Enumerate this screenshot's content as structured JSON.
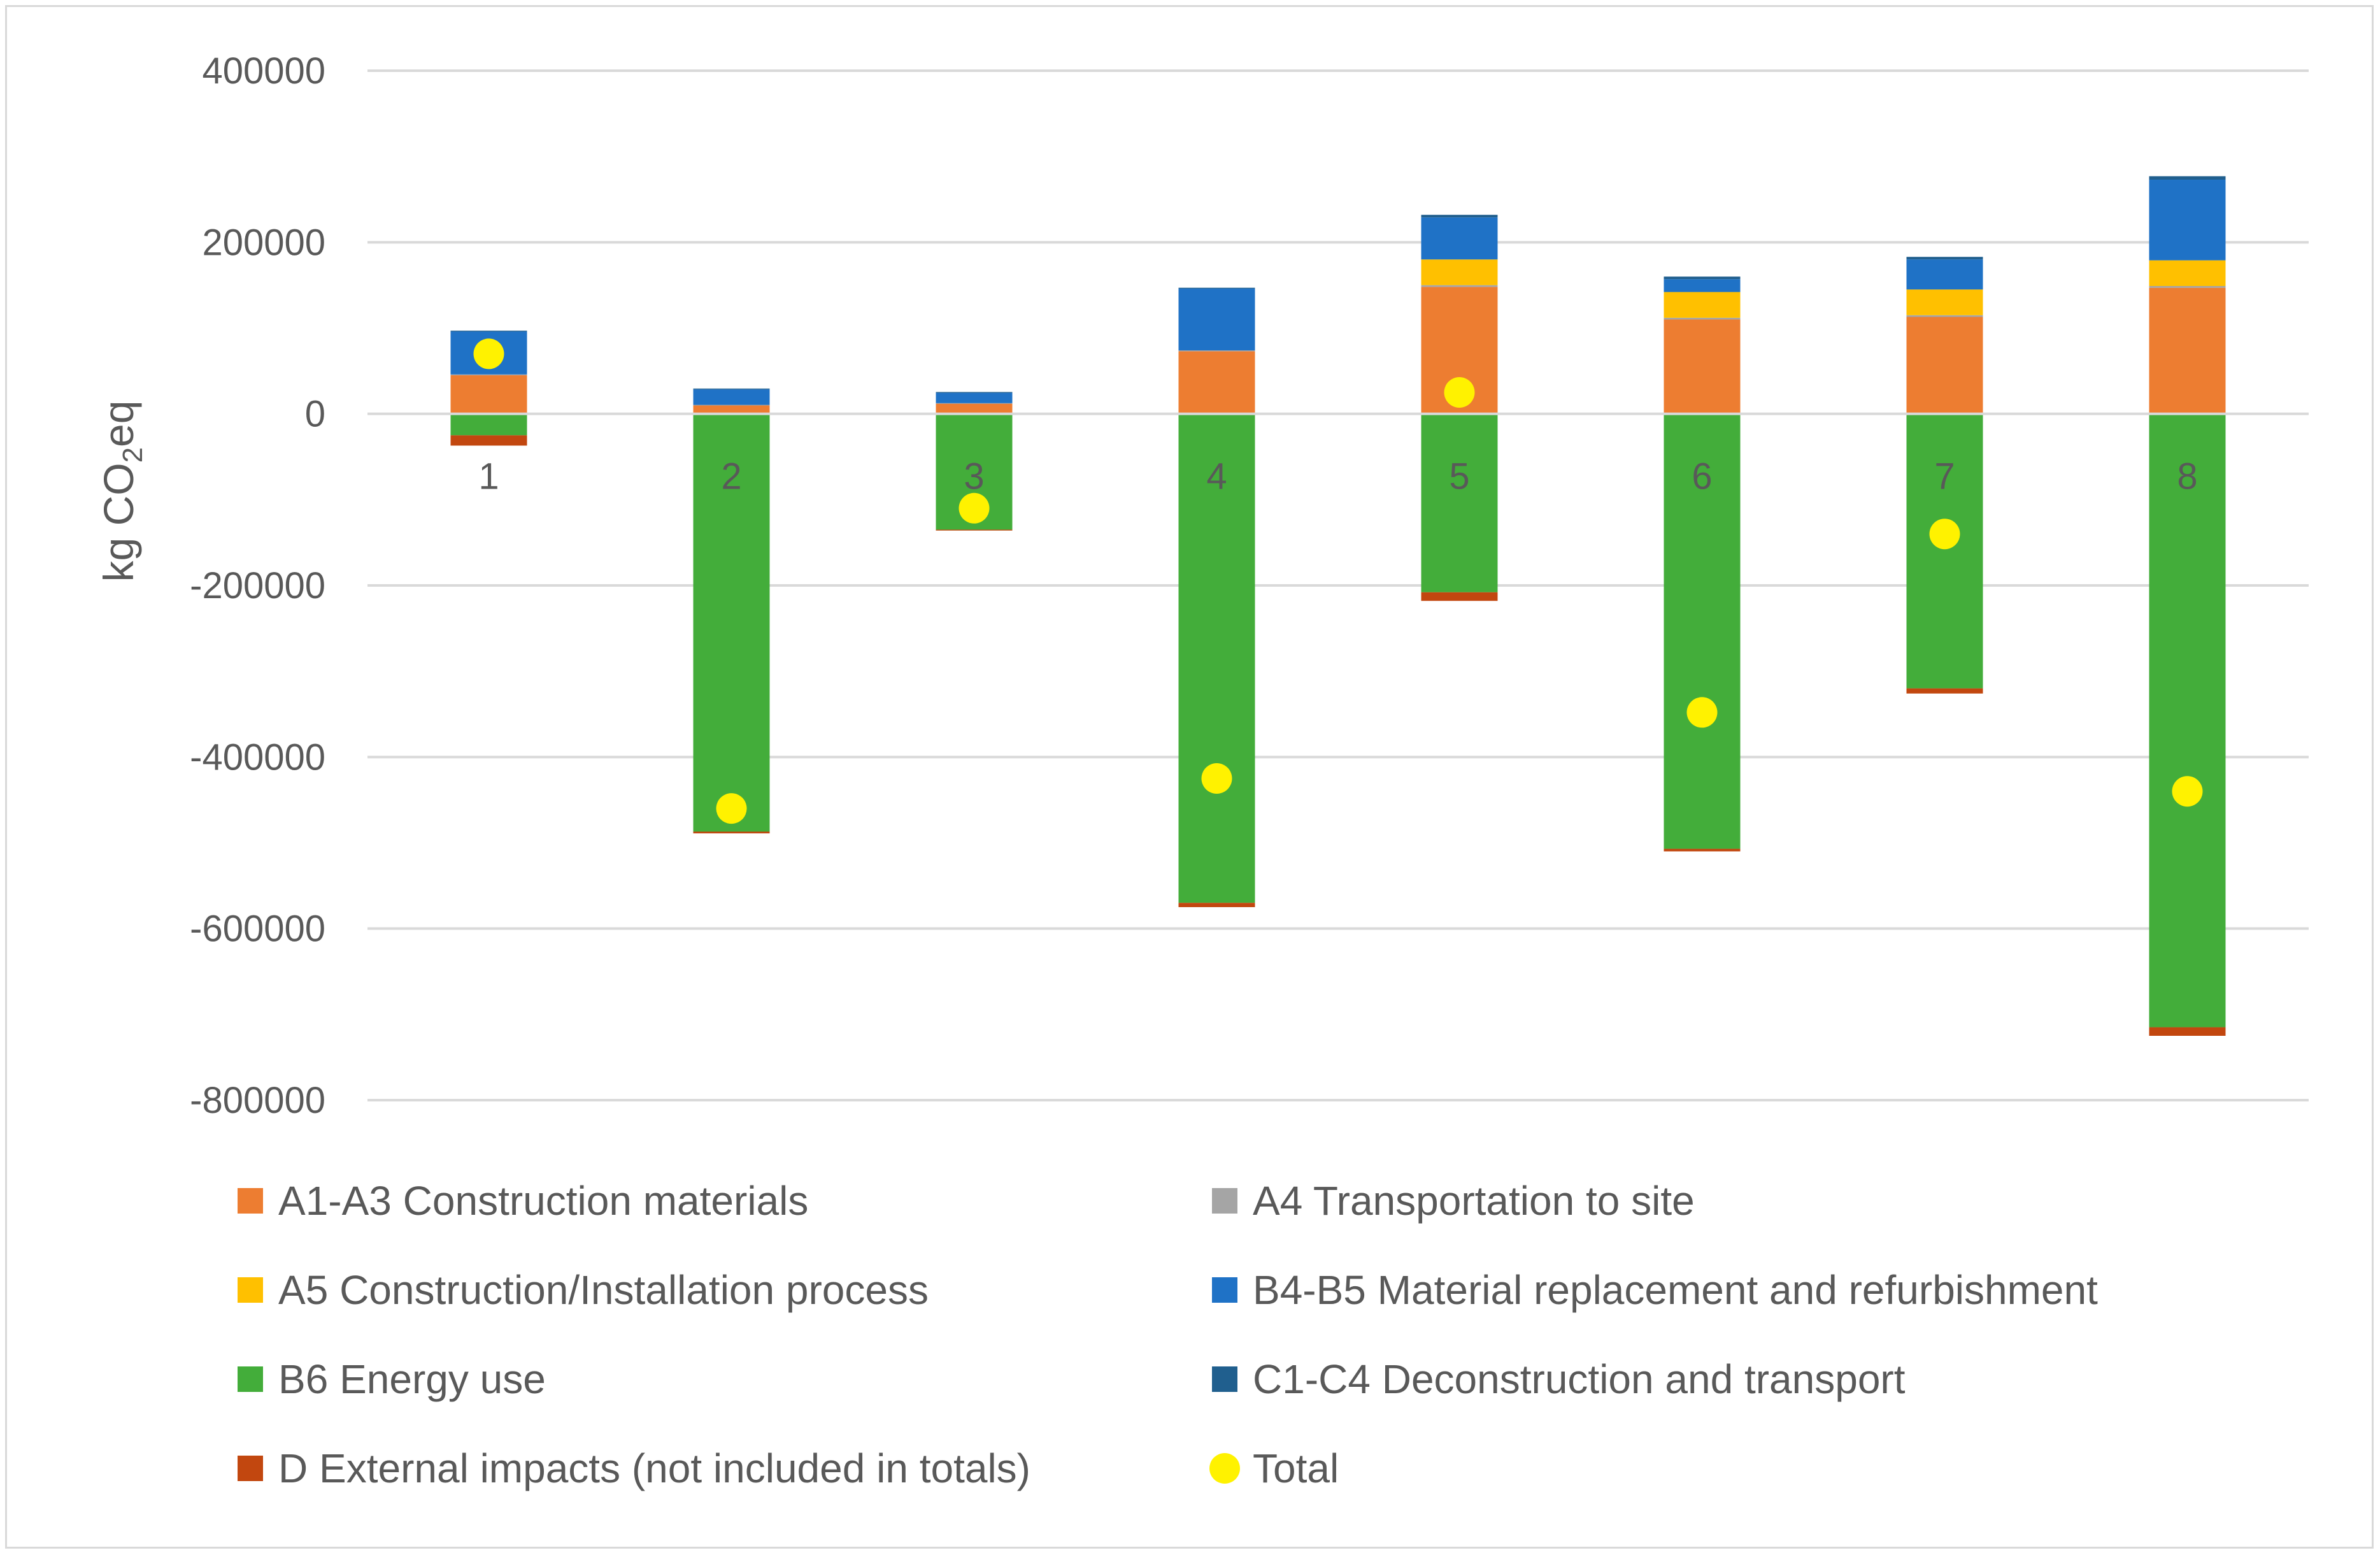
{
  "chart_data": {
    "type": "bar",
    "stacked": true,
    "title": "",
    "xlabel": "",
    "ylabel": "kg CO2eq",
    "ylabel_parts": {
      "main": "kg CO",
      "sub": "2",
      "tail": "eq"
    },
    "ylim": [
      -800000,
      400000
    ],
    "yticks": [
      400000,
      200000,
      0,
      -200000,
      -400000,
      -600000,
      -800000
    ],
    "ytick_labels": [
      "400000",
      "200000",
      "0",
      "-200000",
      "-400000",
      "-600000",
      "-800000"
    ],
    "grid": true,
    "legend_position": "bottom",
    "categories": [
      "1",
      "2",
      "3",
      "4",
      "5",
      "6",
      "7",
      "8"
    ],
    "series": [
      {
        "name": "A1-A3 Construction materials",
        "color": "#ED7D31",
        "values": [
          45000,
          10000,
          12000,
          73000,
          148000,
          110000,
          113000,
          147000
        ]
      },
      {
        "name": "A4 Transportation to site",
        "color": "#A5A5A5",
        "values": [
          1000,
          500,
          500,
          1000,
          2000,
          2000,
          2000,
          2000
        ]
      },
      {
        "name": "A5 Construction/Installation process",
        "color": "#FFC000",
        "values": [
          0,
          0,
          0,
          0,
          30000,
          30000,
          30000,
          30000
        ]
      },
      {
        "name": "B4-B5 Material replacement and refurbishment",
        "color": "#1F72C6",
        "values": [
          50000,
          18000,
          12000,
          72000,
          49000,
          15000,
          35000,
          94000
        ]
      },
      {
        "name": "B6 Energy use",
        "color": "#43AD3A",
        "values": [
          -25000,
          -487000,
          -135000,
          -570000,
          -208000,
          -507000,
          -320000,
          -715000
        ]
      },
      {
        "name": "C1-C4 Deconstruction and transport",
        "color": "#205F8E",
        "values": [
          1000,
          1000,
          1000,
          1000,
          3000,
          3000,
          3000,
          4000
        ]
      },
      {
        "name": "D External impacts (not included in totals)",
        "color": "#C2470F",
        "values": [
          -12000,
          -2000,
          -1000,
          -5000,
          -10000,
          -3000,
          -6000,
          -10000
        ]
      }
    ],
    "totals": {
      "name": "Total",
      "color": "#FFF200",
      "values": [
        70000,
        -460000,
        -110000,
        -425000,
        25000,
        -348000,
        -140000,
        -440000
      ]
    }
  }
}
